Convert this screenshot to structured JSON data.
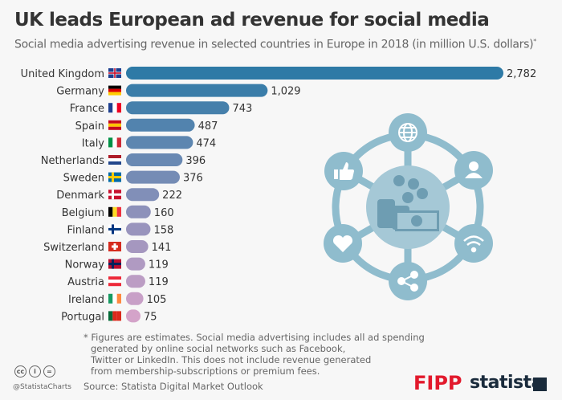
{
  "title": "UK leads European ad revenue for social media",
  "subtitle": "Social media advertising revenue in selected countries in Europe in 2018 (in million U.S. dollars)",
  "subtitle_mark": "*",
  "chart_data": {
    "type": "bar",
    "orientation": "horizontal",
    "categories": [
      "United Kingdom",
      "Germany",
      "France",
      "Spain",
      "Italy",
      "Netherlands",
      "Sweden",
      "Denmark",
      "Belgium",
      "Finland",
      "Switzerland",
      "Norway",
      "Austria",
      "Ireland",
      "Portugal"
    ],
    "values": [
      2782,
      1029,
      743,
      487,
      474,
      396,
      376,
      222,
      160,
      158,
      141,
      119,
      119,
      105,
      75
    ],
    "value_labels": [
      "2,782",
      "1,029",
      "743",
      "487",
      "474",
      "396",
      "376",
      "222",
      "160",
      "158",
      "141",
      "119",
      "119",
      "105",
      "75"
    ],
    "unit": "million U.S. dollars",
    "color_start": "#2e7aa6",
    "color_end": "#d4a3c9",
    "grid": false
  },
  "notes": [
    "* Figures are estimates. Social media advertising includes all ad spending",
    "generated by online social networks such as Facebook,",
    "Twitter or LinkedIn. This does not include revenue generated",
    "from membership-subscriptions or premium fees."
  ],
  "source": "Source: Statista Digital Market Outlook",
  "handle": "@StatistaCharts",
  "license_icons": [
    "cc",
    "i",
    "="
  ],
  "logos": {
    "fipp": "FIPP",
    "statista": "statista"
  },
  "illustration_color": "#8fbccd",
  "illustration_icons": [
    "globe-icon",
    "user-icon",
    "wifi-icon",
    "share-icon",
    "heart-icon",
    "thumbs-up-icon",
    "money-icon"
  ]
}
